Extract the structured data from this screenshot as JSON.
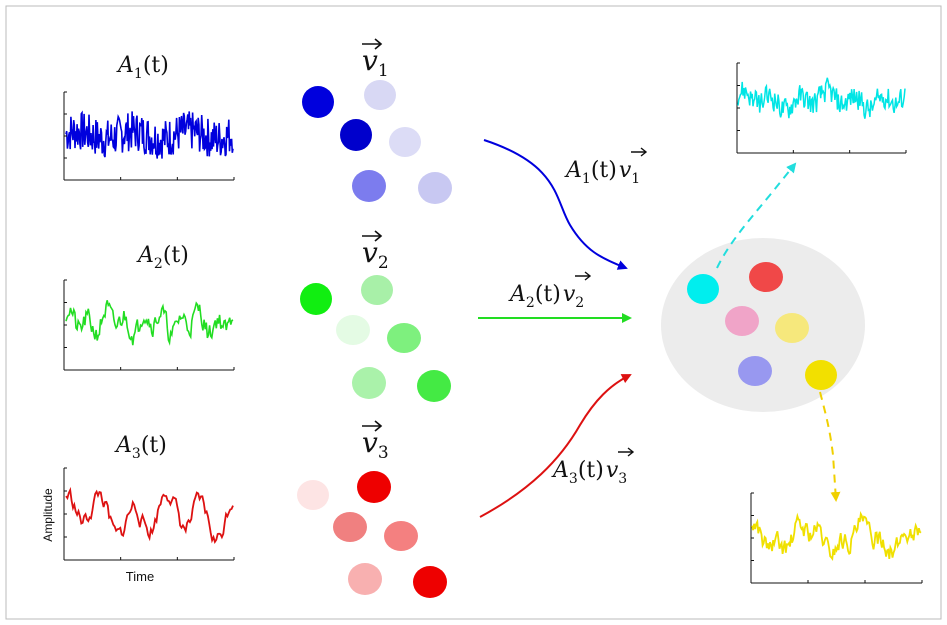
{
  "labels": {
    "amp1_func": "A",
    "amp1_sub": "1",
    "amp1_arg": "(t)",
    "amp2_func": "A",
    "amp2_sub": "2",
    "amp2_arg": "(t)",
    "amp3_func": "A",
    "amp3_sub": "3",
    "amp3_arg": "(t)",
    "vec1_base": "v",
    "vec1_sub": "1",
    "vec2_base": "v",
    "vec2_sub": "2",
    "vec3_base": "v",
    "vec3_sub": "3",
    "flow1_text": "A",
    "flow1_sub": "1",
    "flow1_arg": "(t)",
    "flow1_vec": "v",
    "flow1_vec_sub": "1",
    "flow2_text": "A",
    "flow2_sub": "2",
    "flow2_arg": "(t)",
    "flow2_vec": "v",
    "flow2_vec_sub": "2",
    "flow3_text": "A",
    "flow3_sub": "3",
    "flow3_arg": "(t)",
    "flow3_vec": "v",
    "flow3_vec_sub": "3",
    "y_axis_label": "Amplitude",
    "x_axis_label": "Time"
  },
  "colors": {
    "blue": "#0000dd",
    "green": "#22dd22",
    "red": "#dd1111",
    "cyan": "#00e5e5",
    "yellow": "#f0e000",
    "mixture_bg": "#ececec"
  },
  "signals": {
    "a1": "high-frequency noise",
    "a2": "medium-frequency oscillation",
    "a3": "low-frequency oscillation",
    "out_cyan": "mixed signal",
    "out_yellow": "mixed signal"
  }
}
